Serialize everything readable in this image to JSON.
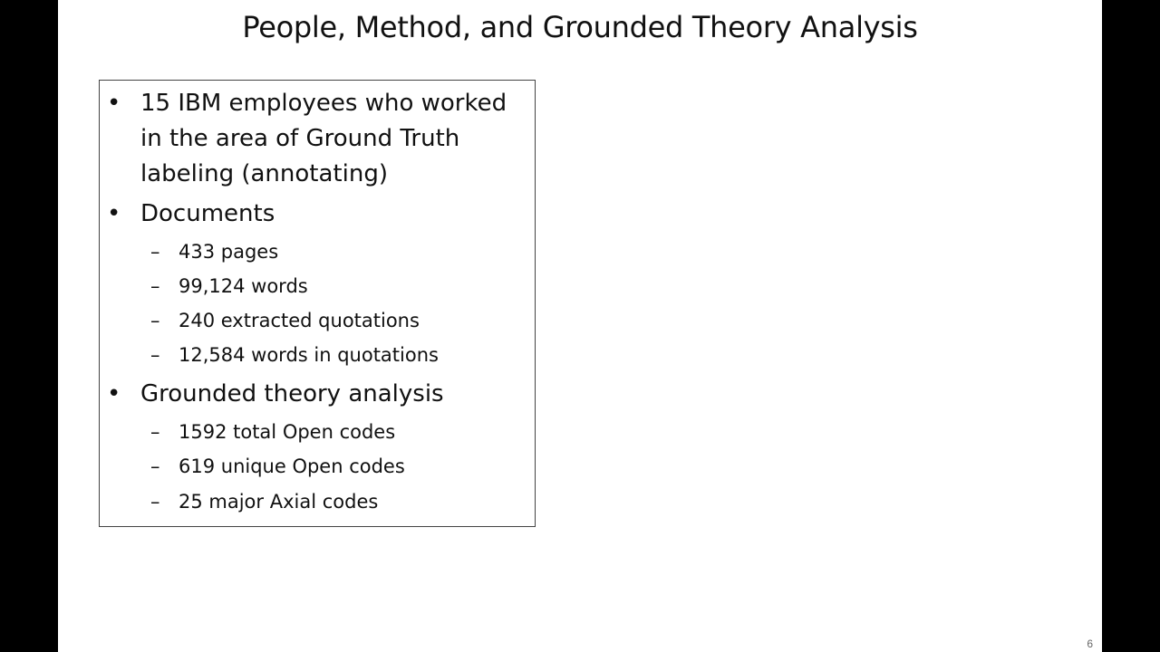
{
  "slide": {
    "title": "People, Method, and Grounded Theory Analysis",
    "page_number": "6",
    "bullet_symbol": "•",
    "dash_symbol": "–",
    "content": {
      "participants": "15 IBM employees who worked in the area of Ground Truth labeling (annotating)",
      "documents": {
        "label": "Documents",
        "items": [
          "433 pages",
          "99,124 words",
          "240 extracted quotations",
          "12,584 words in quotations"
        ]
      },
      "analysis": {
        "label": "Grounded theory analysis",
        "items": [
          "1592 total Open codes",
          "619 unique Open codes",
          "25 major Axial codes"
        ]
      }
    }
  }
}
